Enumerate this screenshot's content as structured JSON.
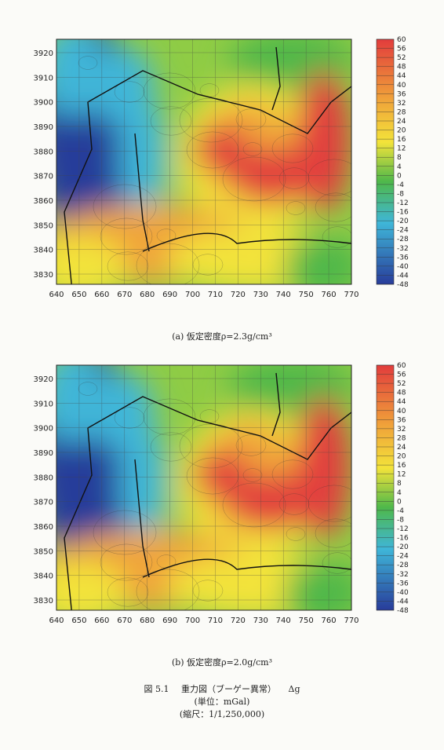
{
  "panels": [
    {
      "id": "a",
      "caption": "(a)  仮定密度ρ=2.3g/cm³",
      "x_ticks": [
        "640",
        "650",
        "660",
        "670",
        "680",
        "690",
        "700",
        "710",
        "720",
        "730",
        "740",
        "750",
        "760",
        "770"
      ],
      "y_ticks": [
        "3920",
        "3910",
        "3900",
        "3890",
        "3880",
        "3870",
        "3860",
        "3850",
        "3840",
        "3830"
      ],
      "colorbar_ticks": [
        "60",
        "56",
        "52",
        "48",
        "44",
        "40",
        "36",
        "32",
        "28",
        "24",
        "20",
        "16",
        "12",
        "8",
        "4",
        "0",
        "-4",
        "-8",
        "-12",
        "-16",
        "-20",
        "-24",
        "-28",
        "-32",
        "-36",
        "-40",
        "-44",
        "-48"
      ]
    },
    {
      "id": "b",
      "caption": "(b)  仮定密度ρ=2.0g/cm³",
      "x_ticks": [
        "640",
        "650",
        "660",
        "670",
        "680",
        "690",
        "700",
        "710",
        "720",
        "730",
        "740",
        "750",
        "760",
        "770"
      ],
      "y_ticks": [
        "3920",
        "3910",
        "3900",
        "3890",
        "3880",
        "3870",
        "3860",
        "3850",
        "3840",
        "3830"
      ],
      "colorbar_ticks": [
        "60",
        "56",
        "52",
        "48",
        "44",
        "40",
        "36",
        "32",
        "28",
        "24",
        "20",
        "16",
        "12",
        "8",
        "4",
        "0",
        "-4",
        "-8",
        "-12",
        "-16",
        "-20",
        "-24",
        "-28",
        "-32",
        "-36",
        "-40",
        "-44",
        "-48"
      ]
    }
  ],
  "figure": {
    "number": "図 5.1",
    "title": "重力図（ブーゲー異常）",
    "symbol": "Δg",
    "unit": "(単位：mGal)",
    "scale": "(縮尺：1/1,250,000)"
  },
  "colors": {
    "high": "#e23c3c",
    "mid_high": "#f0a43a",
    "mid": "#f3e33a",
    "mid_low": "#4fb84a",
    "low_cyan": "#3fb6d8",
    "low": "#283c9a"
  }
}
